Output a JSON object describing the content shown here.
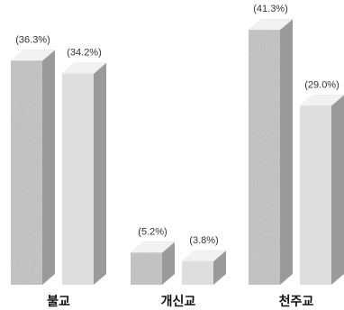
{
  "chart_data": {
    "type": "bar",
    "style": "3d-clustered-columns",
    "categories": [
      "불교",
      "개신교",
      "천주교"
    ],
    "series": [
      {
        "values": [
          36.3,
          5.2,
          41.3
        ],
        "labels": [
          "(36.3%)",
          "(5.2%)",
          "(41.3%)"
        ],
        "color": "#c8c8c8",
        "fill": "textured"
      },
      {
        "values": [
          34.2,
          3.8,
          29.0
        ],
        "labels": [
          "(34.2%)",
          "(3.8%)",
          "(29.0%)"
        ],
        "color": "#dcdcdc",
        "fill": "solid"
      }
    ],
    "title": "",
    "xlabel": "",
    "ylabel": "",
    "ylim": [
      0,
      41.3
    ],
    "grid": false,
    "legend": "none"
  },
  "colors": {
    "front_textured": "#cfcfcf",
    "front_solid": "#dedede",
    "side": "#9a9a9a",
    "top": "#f2f2f2"
  }
}
